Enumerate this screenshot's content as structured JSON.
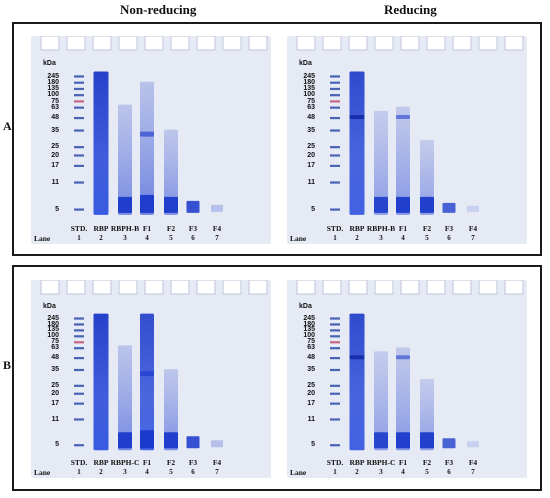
{
  "headers": {
    "left": "Non-reducing",
    "right": "Reducing"
  },
  "rows": [
    {
      "label": "A",
      "lanes": [
        "STD.",
        "RBP",
        "RBPH-B",
        "F1",
        "F2",
        "F3",
        "F4"
      ]
    },
    {
      "label": "B",
      "lanes": [
        "STD.",
        "RBP",
        "RBPH-C",
        "F1",
        "F2",
        "F3",
        "F4"
      ]
    }
  ],
  "lane_numbers": [
    "1",
    "2",
    "3",
    "4",
    "5",
    "6",
    "7"
  ],
  "lane_word": "Lane",
  "kda_label": "kDa",
  "mw_markers": [
    "245",
    "180",
    "135",
    "100",
    "75",
    "63",
    "48",
    "35",
    "25",
    "20",
    "17",
    "11",
    "5"
  ],
  "colors": {
    "gel": "#e6eaf4",
    "stain_dark": "#0b2fbf",
    "stain_light": "#9aa8e0",
    "frame": "#1a1a1a"
  }
}
